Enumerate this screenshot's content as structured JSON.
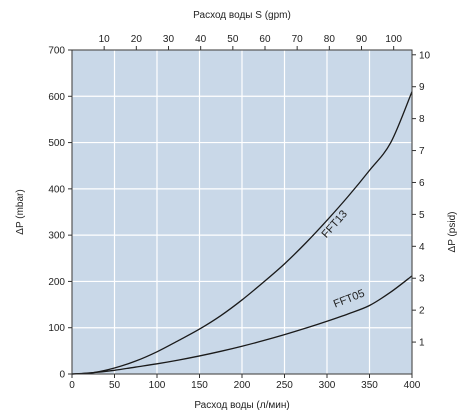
{
  "chart_data": {
    "type": "line",
    "top_xlabel": "Расход воды  S (gpm)",
    "xlabel": "Расход воды (л/мин)",
    "ylabel_left": "ΔP (mbar)",
    "ylabel_right": "ΔP (psid)",
    "xlim": [
      0,
      400
    ],
    "ylim": [
      0,
      700
    ],
    "top_xlim": [
      0,
      105.7
    ],
    "right_ylim": [
      0,
      10.15
    ],
    "x_ticks": [
      0,
      50,
      100,
      150,
      200,
      250,
      300,
      350,
      400
    ],
    "y_ticks": [
      0,
      100,
      200,
      300,
      400,
      500,
      600,
      700
    ],
    "top_ticks": [
      10,
      20,
      30,
      40,
      50,
      60,
      70,
      80,
      90,
      100
    ],
    "right_ticks": [
      1,
      2,
      3,
      4,
      5,
      6,
      7,
      8,
      9,
      10
    ],
    "grid": true,
    "plot_background": "#c9d8e8",
    "series": [
      {
        "name": "FFT13",
        "x": [
          0,
          25,
          50,
          75,
          100,
          125,
          150,
          175,
          200,
          225,
          250,
          275,
          300,
          325,
          350,
          375,
          400
        ],
        "y": [
          0,
          3,
          13,
          28,
          48,
          72,
          97,
          126,
          160,
          198,
          238,
          283,
          332,
          384,
          440,
          500,
          610
        ]
      },
      {
        "name": "FFT05",
        "x": [
          0,
          25,
          50,
          75,
          100,
          125,
          150,
          175,
          200,
          225,
          250,
          275,
          300,
          325,
          350,
          375,
          400
        ],
        "y": [
          0,
          3,
          8,
          15,
          22,
          30,
          39,
          49,
          60,
          72,
          85,
          99,
          114,
          130,
          148,
          177,
          212
        ]
      }
    ]
  }
}
